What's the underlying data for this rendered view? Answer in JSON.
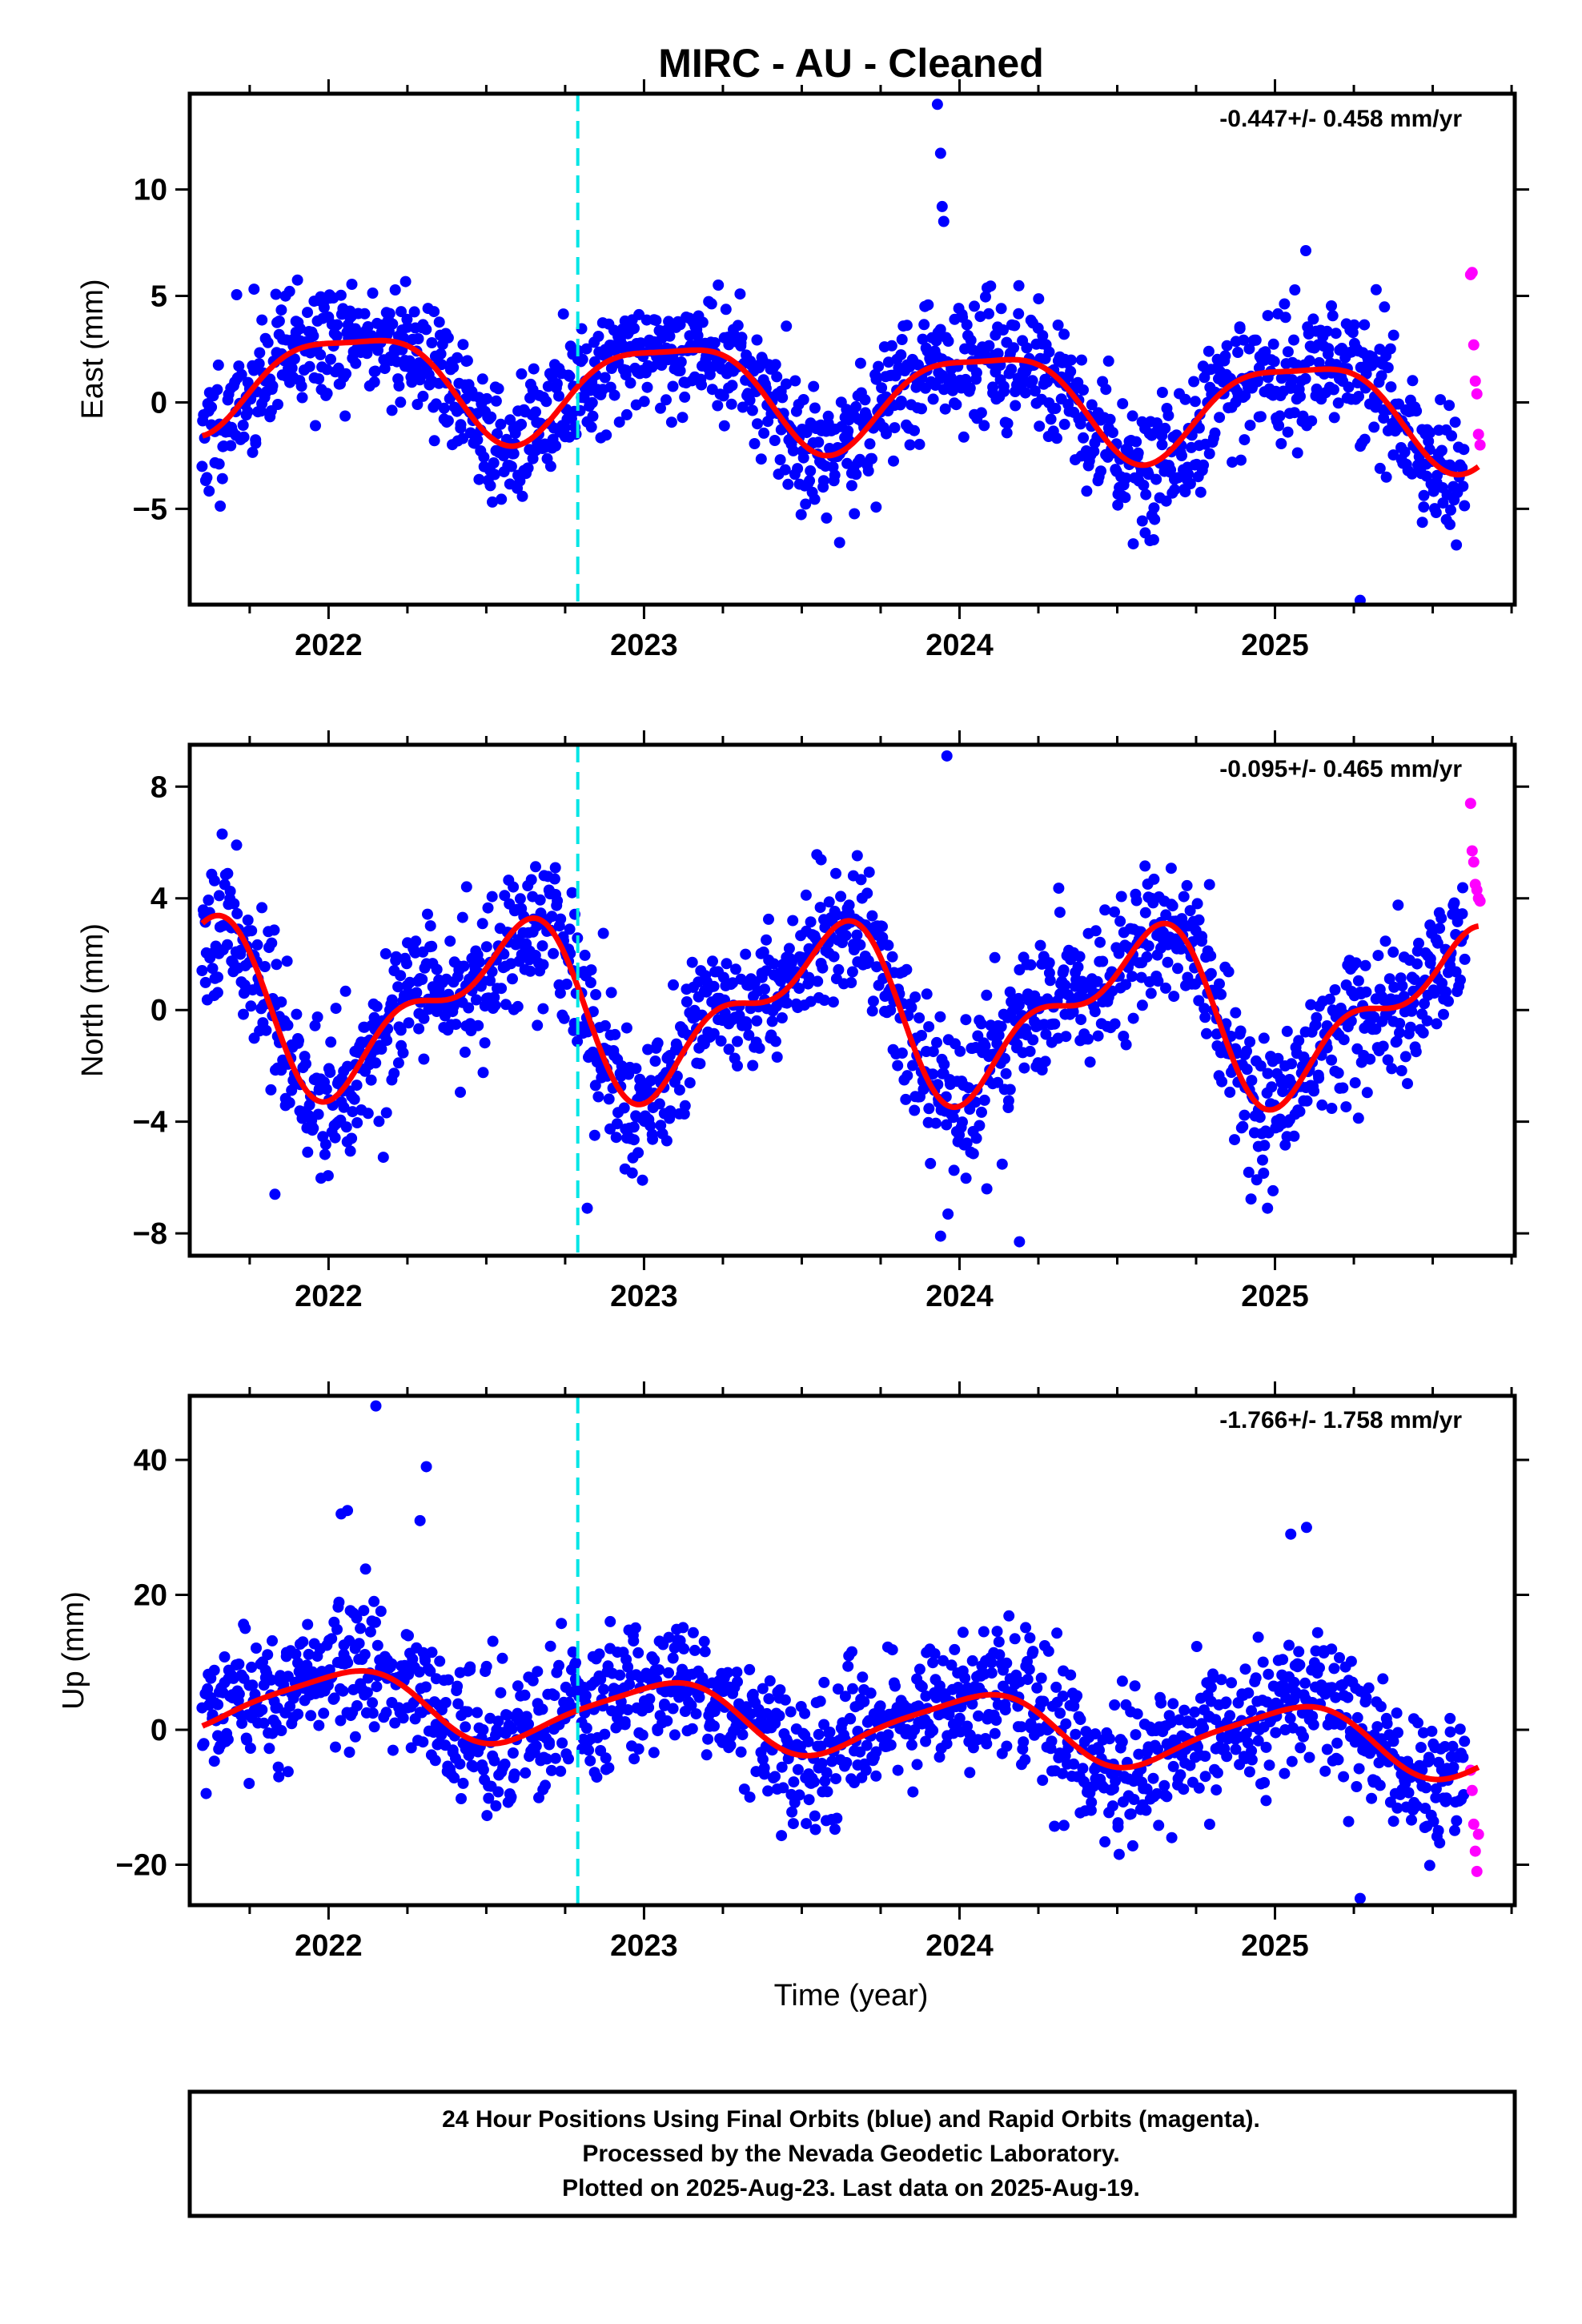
{
  "title": "MIRC  - AU - Cleaned",
  "footer": {
    "line1": "24 Hour Positions Using Final Orbits (blue) and Rapid Orbits (magenta).",
    "line2": "Processed by the Nevada Geodetic Laboratory.",
    "line3": "Plotted on 2025-Aug-23. Last data on 2025-Aug-19."
  },
  "chart_data": [
    {
      "type": "scatter",
      "ylabel": "East (mm)",
      "xlabel": "",
      "rate_label": "-0.447+/- 0.458 mm/yr",
      "xlim": [
        2021.56,
        2025.76
      ],
      "ylim": [
        -9.5,
        14.5
      ],
      "xticks": [
        "2022",
        "2023",
        "2024",
        "2025"
      ],
      "yticks": [
        -5,
        0,
        5,
        10
      ],
      "vline_x": 2022.79,
      "colors": {
        "final": "#0000ff",
        "rapid": "#ff00ff",
        "model": "#ff0000",
        "event": "#00e5e5"
      },
      "series": [
        {
          "role": "final-orbits",
          "generated_points": 1450,
          "noise_sd_mm": 1.5,
          "seed": 11
        },
        {
          "role": "rapid-orbits",
          "x": [
            2025.62,
            2025.625,
            2025.63,
            2025.635,
            2025.64,
            2025.645,
            2025.65
          ],
          "y": [
            6.0,
            6.1,
            2.7,
            1.0,
            0.4,
            -1.5,
            -2.0
          ]
        },
        {
          "role": "model",
          "mean": 0.5,
          "trend_mm_per_yr": -0.447,
          "annual_sin": 1.2,
          "annual_cos": 2.0,
          "semiannual_sin": -0.5,
          "semiannual_cos": -0.4
        }
      ],
      "outliers": {
        "x": [
          2023.93,
          2023.94,
          2023.945,
          2023.95,
          2025.27
        ],
        "y": [
          14.0,
          11.7,
          9.2,
          8.5,
          -9.3
        ]
      }
    },
    {
      "type": "scatter",
      "ylabel": "North (mm)",
      "xlabel": "",
      "rate_label": "-0.095+/- 0.465 mm/yr",
      "xlim": [
        2021.56,
        2025.76
      ],
      "ylim": [
        -8.8,
        9.5
      ],
      "xticks": [
        "2022",
        "2023",
        "2024",
        "2025"
      ],
      "yticks": [
        -8,
        -4,
        0,
        4,
        8
      ],
      "vline_x": 2022.79,
      "colors": {
        "final": "#0000ff",
        "rapid": "#ff00ff",
        "model": "#ff0000",
        "event": "#00e5e5"
      },
      "series": [
        {
          "role": "final-orbits",
          "generated_points": 1450,
          "noise_sd_mm": 1.3,
          "seed": 23
        },
        {
          "role": "rapid-orbits",
          "x": [
            2025.62,
            2025.625,
            2025.63,
            2025.635,
            2025.64,
            2025.645,
            2025.65
          ],
          "y": [
            7.4,
            5.7,
            5.3,
            4.5,
            4.3,
            4.0,
            3.9
          ]
        },
        {
          "role": "model",
          "mean": 0.0,
          "trend_mm_per_yr": -0.095,
          "annual_sin": -0.9,
          "annual_cos": -2.4,
          "semiannual_sin": 0.8,
          "semiannual_cos": -1.0
        }
      ],
      "outliers": {
        "x": [
          2023.96,
          2023.94,
          2024.19,
          2021.83,
          2022.82
        ],
        "y": [
          9.1,
          -8.1,
          -8.3,
          -6.6,
          -7.1
        ]
      }
    },
    {
      "type": "scatter",
      "ylabel": "Up (mm)",
      "xlabel": "Time (year)",
      "rate_label": "-1.766+/- 1.758 mm/yr",
      "xlim": [
        2021.56,
        2025.76
      ],
      "ylim": [
        -26,
        49.5
      ],
      "xticks": [
        "2022",
        "2023",
        "2024",
        "2025"
      ],
      "yticks": [
        -20,
        0,
        20,
        40
      ],
      "vline_x": 2022.79,
      "colors": {
        "final": "#0000ff",
        "rapid": "#ff00ff",
        "model": "#ff0000",
        "event": "#00e5e5"
      },
      "series": [
        {
          "role": "final-orbits",
          "generated_points": 1450,
          "noise_sd_mm": 5.0,
          "seed": 37
        },
        {
          "role": "rapid-orbits",
          "x": [
            2025.62,
            2025.625,
            2025.63,
            2025.635,
            2025.64,
            2025.645
          ],
          "y": [
            -6.0,
            -9.0,
            -14.0,
            -18.0,
            -21.0,
            -15.5
          ]
        },
        {
          "role": "model",
          "mean": 1.5,
          "trend_mm_per_yr": -1.766,
          "annual_sin": 1.5,
          "annual_cos": 4.5,
          "semiannual_sin": 0.5,
          "semiannual_cos": -0.8
        }
      ],
      "outliers": {
        "x": [
          2022.15,
          2022.31,
          2022.29,
          2022.04,
          2022.06,
          2025.05,
          2025.1,
          2025.27
        ],
        "y": [
          48.0,
          39.0,
          31.0,
          32.0,
          32.5,
          29.0,
          30.0,
          -25.0
        ]
      }
    }
  ]
}
